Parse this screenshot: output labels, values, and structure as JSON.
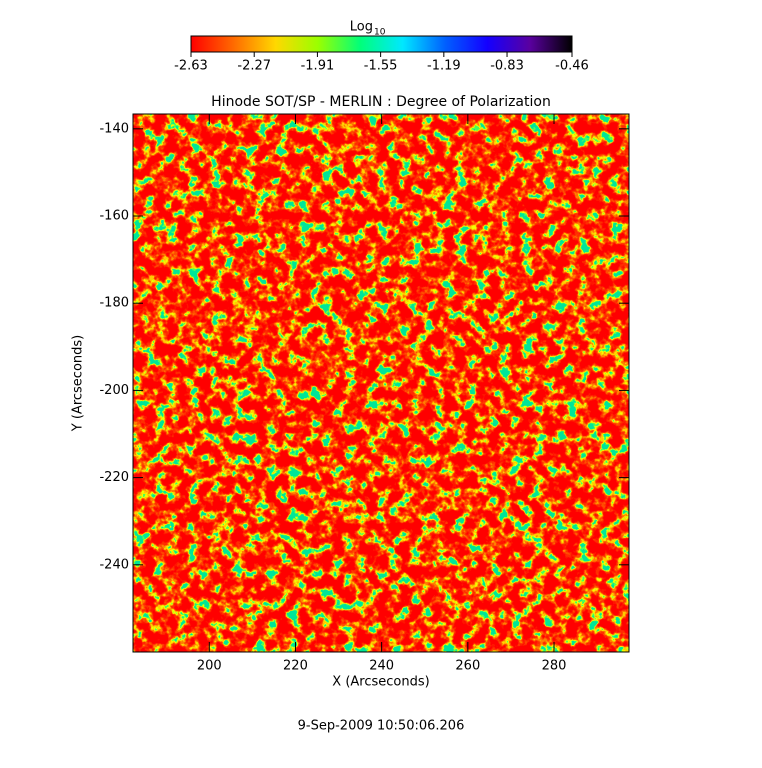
{
  "chart_data": {
    "type": "image",
    "title": "Hinode SOT/SP - MERLIN : Degree of Polarization",
    "x_label": "X (Arcseconds)",
    "y_label": "Y (Arcseconds)",
    "footer": "9-Sep-2009 10:50:06.206",
    "xlim": [
      182.3,
      297.4
    ],
    "xticks": [
      200,
      220,
      240,
      260,
      280
    ],
    "ylim": [
      -260,
      -136.6
    ],
    "yticks": [
      -240,
      -220,
      -200,
      -180,
      -160,
      -140
    ],
    "colorbar": {
      "label": "Log",
      "label_subscript": "10",
      "clim": [
        -2.63,
        -0.46
      ],
      "ticks": [
        -2.63,
        -2.27,
        -1.91,
        -1.55,
        -1.19,
        -0.83,
        -0.46
      ],
      "colormap": [
        "#ff0000",
        "#ff6a00",
        "#ffd800",
        "#9aff00",
        "#00ff7a",
        "#00e8ff",
        "#0060ff",
        "#1400ff",
        "#5a00a0",
        "#000000"
      ]
    }
  }
}
